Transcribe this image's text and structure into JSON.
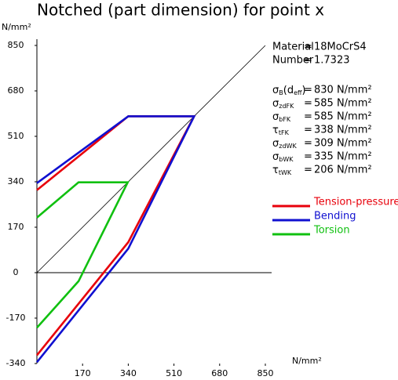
{
  "chart_data": {
    "type": "line",
    "title": "Notched (part dimension) for point x",
    "y_label": "N/mm²",
    "x_label": "N/mm²",
    "xlim": [
      0,
      850
    ],
    "ylim": [
      -340,
      850
    ],
    "xticks": [
      170,
      340,
      510,
      680,
      850
    ],
    "yticks": [
      -340,
      -170,
      0,
      170,
      340,
      510,
      680,
      850
    ],
    "legend": "right",
    "series": [
      {
        "name": "Tension-pressure",
        "color": "#e8000b",
        "x": [
          0,
          340,
          585,
          340,
          0
        ],
        "values": [
          309,
          585,
          585,
          114,
          -309
        ]
      },
      {
        "name": "Bending",
        "color": "#1010d0",
        "x": [
          0,
          340,
          585,
          340,
          0
        ],
        "values": [
          335,
          585,
          585,
          90,
          -335
        ]
      },
      {
        "name": "Torsion",
        "color": "#10c010",
        "x": [
          0,
          155,
          338,
          155,
          0
        ],
        "values": [
          206,
          338,
          338,
          -32,
          -206
        ]
      }
    ],
    "info": {
      "equals": "=",
      "header": [
        [
          "Material",
          "18MoCrS4"
        ],
        [
          "Number",
          "1.7323"
        ]
      ],
      "rows": [
        {
          "label": [
            "σ",
            "B",
            "(d",
            "eff",
            ")"
          ],
          "value": "830 N/mm²"
        },
        {
          "label": [
            "σ",
            "zdFK"
          ],
          "value": "585 N/mm²"
        },
        {
          "label": [
            "σ",
            "bFK"
          ],
          "value": "585 N/mm²"
        },
        {
          "label": [
            "τ",
            "tFK"
          ],
          "value": "338 N/mm²"
        },
        {
          "label": [
            "σ",
            "zdWK"
          ],
          "value": "309 N/mm²"
        },
        {
          "label": [
            "σ",
            "bWK"
          ],
          "value": "335 N/mm²"
        },
        {
          "label": [
            "τ",
            "tWK"
          ],
          "value": "206 N/mm²"
        }
      ]
    }
  }
}
